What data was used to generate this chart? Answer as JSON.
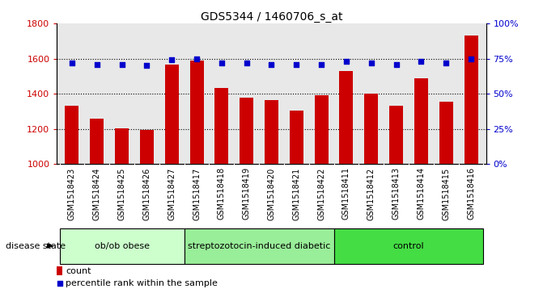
{
  "title": "GDS5344 / 1460706_s_at",
  "samples": [
    "GSM1518423",
    "GSM1518424",
    "GSM1518425",
    "GSM1518426",
    "GSM1518427",
    "GSM1518417",
    "GSM1518418",
    "GSM1518419",
    "GSM1518420",
    "GSM1518421",
    "GSM1518422",
    "GSM1518411",
    "GSM1518412",
    "GSM1518413",
    "GSM1518414",
    "GSM1518415",
    "GSM1518416"
  ],
  "counts": [
    1330,
    1260,
    1205,
    1195,
    1565,
    1590,
    1435,
    1380,
    1365,
    1305,
    1390,
    1530,
    1400,
    1330,
    1490,
    1355,
    1730
  ],
  "percentiles": [
    72,
    71,
    71,
    70,
    74,
    75,
    72,
    72,
    71,
    71,
    71,
    73,
    72,
    71,
    73,
    72,
    75
  ],
  "groups": [
    {
      "label": "ob/ob obese",
      "start": 0,
      "end": 5,
      "color": "#ccffcc"
    },
    {
      "label": "streptozotocin-induced diabetic",
      "start": 5,
      "end": 11,
      "color": "#99ee99"
    },
    {
      "label": "control",
      "start": 11,
      "end": 17,
      "color": "#44dd44"
    }
  ],
  "ylim_left": [
    1000,
    1800
  ],
  "ylim_right": [
    0,
    100
  ],
  "yticks_left": [
    1000,
    1200,
    1400,
    1600,
    1800
  ],
  "yticks_right": [
    0,
    25,
    50,
    75,
    100
  ],
  "bar_color": "#cc0000",
  "dot_color": "#0000cc",
  "plot_bg_color": "#e8e8e8",
  "tick_bg_color": "#cccccc",
  "legend_count_color": "#cc0000",
  "legend_dot_color": "#0000cc",
  "title_fontsize": 10,
  "tick_label_fontsize": 7,
  "group_label_fontsize": 8,
  "legend_fontsize": 8
}
